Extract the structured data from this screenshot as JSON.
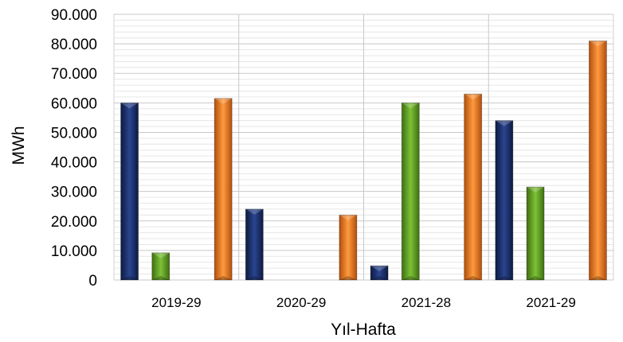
{
  "chart_data": {
    "type": "bar",
    "title": "",
    "xlabel": "Yıl-Hafta",
    "ylabel": "MWh",
    "ylim": [
      0,
      90000
    ],
    "yticks": [
      0,
      10000,
      20000,
      30000,
      40000,
      50000,
      60000,
      70000,
      80000,
      90000
    ],
    "ytick_labels": [
      "0",
      "10.000",
      "20.000",
      "30.000",
      "40.000",
      "50.000",
      "60.000",
      "70.000",
      "80.000",
      "90.000"
    ],
    "categories": [
      "2019-29",
      "2020-29",
      "2021-28",
      "2021-29"
    ],
    "grid": true,
    "legend": "none",
    "series": [
      {
        "color": "#1f3470",
        "values": [
          60000,
          24000,
          4800,
          54000
        ]
      },
      {
        "color": "#6aa52a",
        "values": [
          9200,
          0,
          60000,
          31500
        ]
      },
      {
        "color": "#f07f24",
        "values": [
          61500,
          22000,
          63000,
          81000
        ]
      }
    ]
  }
}
